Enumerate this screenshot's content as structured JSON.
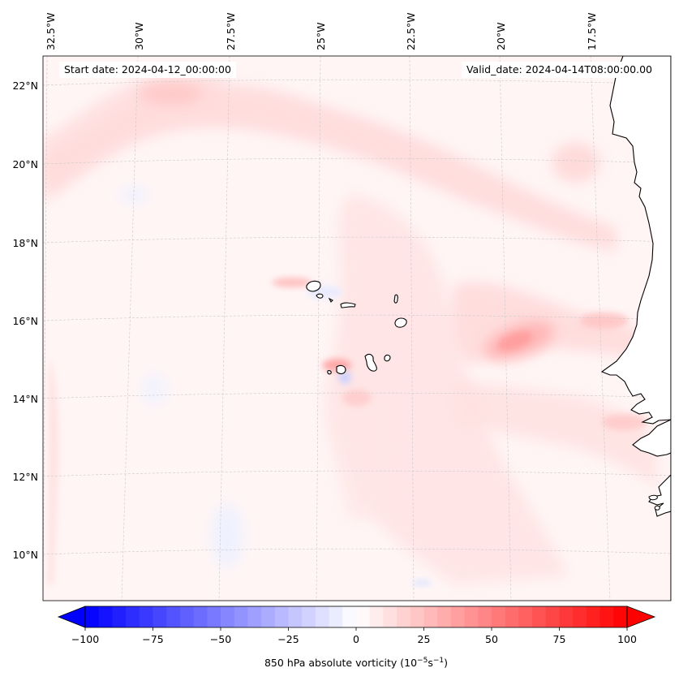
{
  "map": {
    "start_date": "Start date: 2024-04-12_00:00:00",
    "valid_date": "Valid_date: 2024-04-14T08:00:00.00",
    "lon_labels": [
      "32.5°W",
      "30°W",
      "27.5°W",
      "25°W",
      "22.5°W",
      "20°W",
      "17.5°W"
    ],
    "lat_labels": [
      "22°N",
      "20°N",
      "18°N",
      "16°N",
      "14°N",
      "12°N",
      "10°N"
    ],
    "gridlines": "dashed light gray"
  },
  "colorbar": {
    "label": "850 hPa absolute vorticity (10",
    "label_exp1": "−5",
    "label_mid": "s",
    "label_exp2": "−1",
    "label_end": ")",
    "tick_labels": [
      "−100",
      "−75",
      "−50",
      "−25",
      "0",
      "25",
      "50",
      "75",
      "100"
    ],
    "min": -100,
    "max": 100,
    "step": 5,
    "colormap": "bwr",
    "extend": "both"
  },
  "colors": {
    "land_fill": "#ffffff",
    "coastline": "#000000",
    "low_color": "#0000ff",
    "high_color": "#ff0000"
  }
}
